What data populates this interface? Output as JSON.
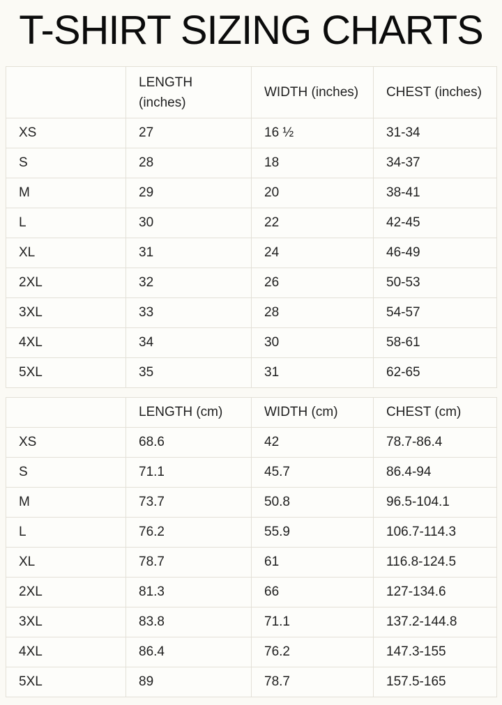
{
  "page": {
    "title": "T-SHIRT SIZING CHARTS"
  },
  "colors": {
    "background": "#fbfaf5",
    "table_border": "#e3e0d7",
    "text": "#1e1e1e"
  },
  "tables": [
    {
      "unit": "inches",
      "headers": [
        "",
        "LENGTH (inches)",
        "WIDTH (inches)",
        "CHEST (inches)"
      ],
      "rows": [
        [
          "XS",
          "27",
          "16 ½",
          "31-34"
        ],
        [
          "S",
          "28",
          "18",
          "34-37"
        ],
        [
          "M",
          "29",
          "20",
          "38-41"
        ],
        [
          "L",
          "30",
          "22",
          "42-45"
        ],
        [
          "XL",
          "31",
          "24",
          "46-49"
        ],
        [
          "2XL",
          "32",
          "26",
          "50-53"
        ],
        [
          "3XL",
          "33",
          "28",
          "54-57"
        ],
        [
          "4XL",
          "34",
          "30",
          "58-61"
        ],
        [
          "5XL",
          "35",
          "31",
          "62-65"
        ]
      ]
    },
    {
      "unit": "cm",
      "headers": [
        "",
        "LENGTH (cm)",
        "WIDTH (cm)",
        "CHEST (cm)"
      ],
      "rows": [
        [
          "XS",
          "68.6",
          "42",
          "78.7-86.4"
        ],
        [
          "S",
          "71.1",
          "45.7",
          "86.4-94"
        ],
        [
          "M",
          "73.7",
          "50.8",
          "96.5-104.1"
        ],
        [
          "L",
          "76.2",
          "55.9",
          "106.7-114.3"
        ],
        [
          "XL",
          "78.7",
          "61",
          "116.8-124.5"
        ],
        [
          "2XL",
          "81.3",
          "66",
          "127-134.6"
        ],
        [
          "3XL",
          "83.8",
          "71.1",
          "137.2-144.8"
        ],
        [
          "4XL",
          "86.4",
          "76.2",
          "147.3-155"
        ],
        [
          "5XL",
          "89",
          "78.7",
          "157.5-165"
        ]
      ]
    }
  ]
}
